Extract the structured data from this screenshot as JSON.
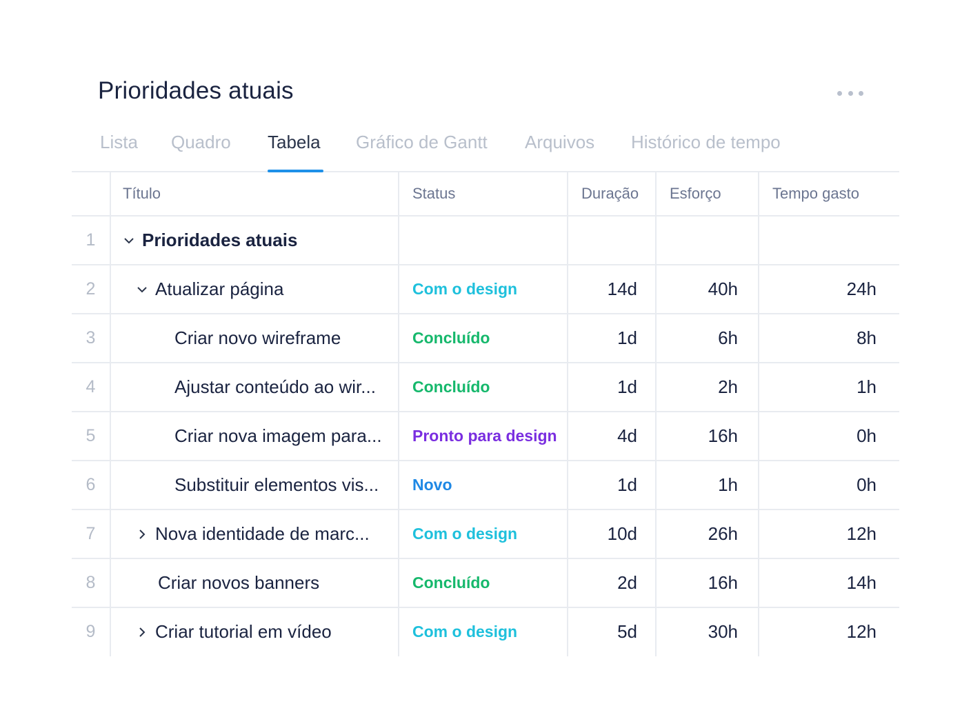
{
  "page": {
    "title": "Prioridades atuais"
  },
  "tabs": [
    {
      "label": "Lista",
      "active": false
    },
    {
      "label": "Quadro",
      "active": false
    },
    {
      "label": "Tabela",
      "active": true
    },
    {
      "label": "Gráfico de Gantt",
      "active": false
    },
    {
      "label": "Arquivos",
      "active": false
    },
    {
      "label": "Histórico de tempo",
      "active": false
    }
  ],
  "table": {
    "columns": [
      "Título",
      "Status",
      "Duração",
      "Esforço",
      "Tempo gasto"
    ],
    "rows": [
      {
        "num": "1",
        "title": "Prioridades atuais",
        "status": "",
        "duracao": "",
        "esforco": "",
        "tempo": ""
      },
      {
        "num": "2",
        "title": "Atualizar página",
        "status": "Com o design",
        "duracao": "14d",
        "esforco": "40h",
        "tempo": "24h"
      },
      {
        "num": "3",
        "title": "Criar novo wireframe",
        "status": "Concluído",
        "duracao": "1d",
        "esforco": "6h",
        "tempo": "8h"
      },
      {
        "num": "4",
        "title": "Ajustar conteúdo ao wir...",
        "status": "Concluído",
        "duracao": "1d",
        "esforco": "2h",
        "tempo": "1h"
      },
      {
        "num": "5",
        "title": "Criar nova imagem para...",
        "status": "Pronto para design",
        "duracao": "4d",
        "esforco": "16h",
        "tempo": "0h"
      },
      {
        "num": "6",
        "title": "Substituir elementos vis...",
        "status": "Novo",
        "duracao": "1d",
        "esforco": "1h",
        "tempo": "0h"
      },
      {
        "num": "7",
        "title": "Nova identidade de marc...",
        "status": "Com o design",
        "duracao": "10d",
        "esforco": "26h",
        "tempo": "12h"
      },
      {
        "num": "8",
        "title": "Criar novos banners",
        "status": "Concluído",
        "duracao": "2d",
        "esforco": "16h",
        "tempo": "14h"
      },
      {
        "num": "9",
        "title": "Criar tutorial em vídeo",
        "status": "Com o design",
        "duracao": "5d",
        "esforco": "30h",
        "tempo": "12h"
      }
    ]
  },
  "status_colors": {
    "Com o design": "#1ec0dc",
    "Concluído": "#16b86c",
    "Pronto para design": "#7a2ee0",
    "Novo": "#1e88e5"
  },
  "icons": {
    "more": "more-horizontal-icon",
    "expanded": "chevron-down-icon",
    "collapsed": "chevron-right-icon"
  }
}
